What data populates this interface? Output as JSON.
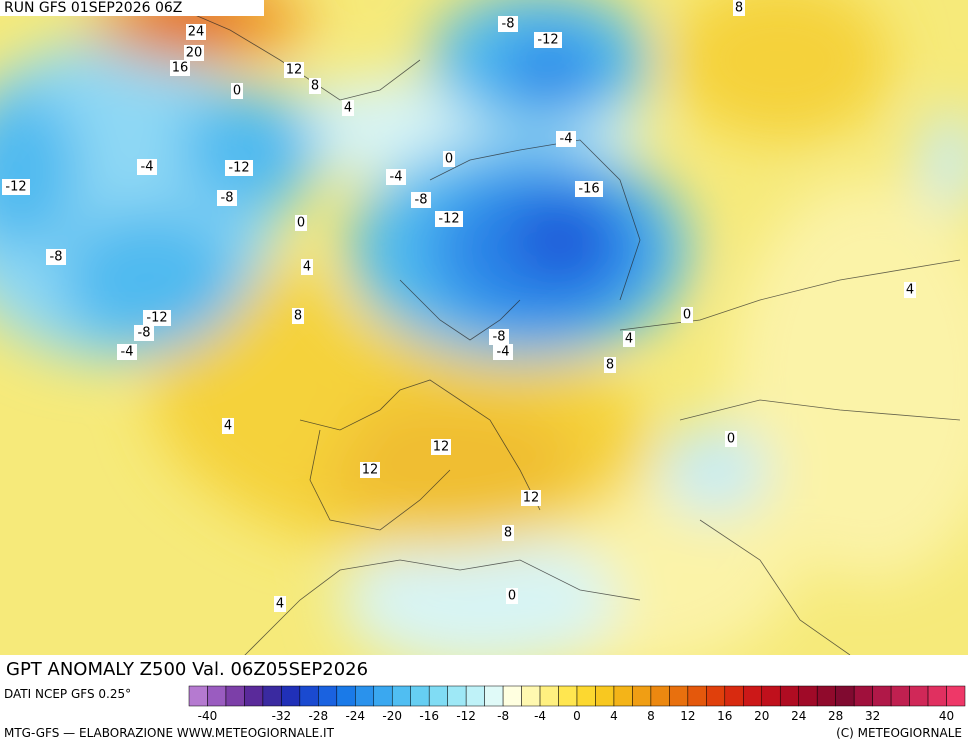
{
  "header": {
    "run": "RUN GFS 01SEP2026 06Z"
  },
  "map": {
    "title": "GPT ANOMALY Z500 Val. 06Z05SEP2026",
    "contour_labels": [
      "24",
      "20",
      "16",
      "12",
      "8",
      "0",
      "4",
      "-8",
      "-12",
      "8",
      "-4",
      "-12",
      "-8",
      "-12",
      "0",
      "-4",
      "-4",
      "-8",
      "-16",
      "-12",
      "0",
      "-8",
      "4",
      "8",
      "-12",
      "-8",
      "-4",
      "-8",
      "-4",
      "0",
      "4",
      "8",
      "4",
      "4",
      "0",
      "12",
      "12",
      "12",
      "8",
      "0",
      "4"
    ]
  },
  "legend": {
    "source": "DATI NCEP GFS 0.25°",
    "ticks": [
      "-40",
      "-32",
      "-28",
      "-24",
      "-20",
      "-16",
      "-12",
      "-8",
      "-4",
      "0",
      "4",
      "8",
      "12",
      "16",
      "20",
      "24",
      "28",
      "32",
      "40"
    ]
  },
  "footer": {
    "left": "MTG-GFS — ELABORAZIONE WWW.METEOGIORNALE.IT",
    "right": "(C) METEOGIORNALE"
  }
}
